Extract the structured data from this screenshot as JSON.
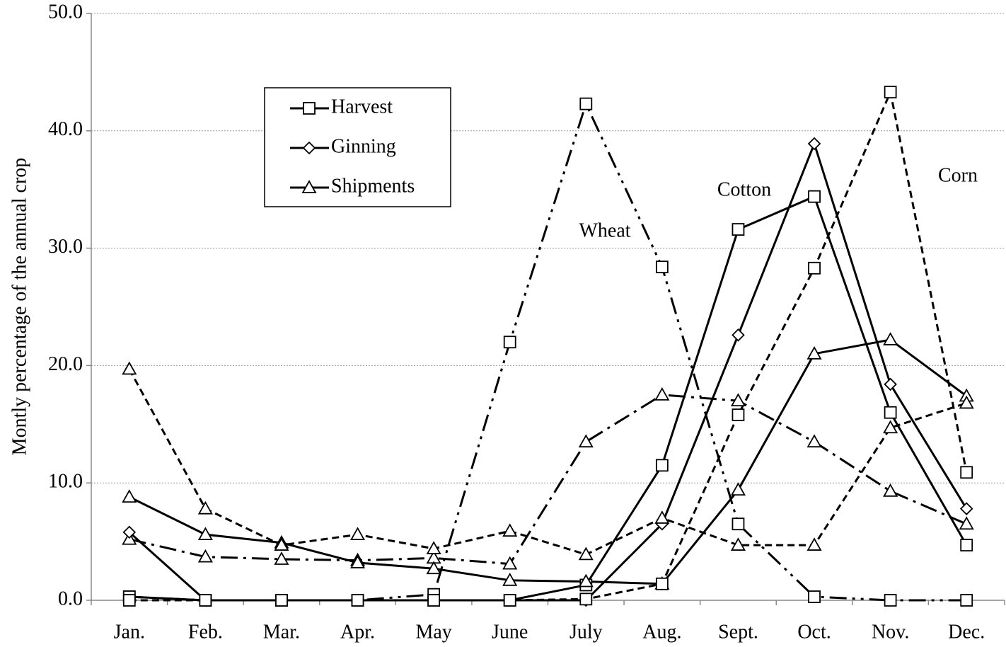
{
  "chart_data": {
    "type": "line",
    "y_label": "Montly percentage of the annual crop",
    "categories": [
      "Jan.",
      "Feb.",
      "Mar.",
      "Apr.",
      "May",
      "June",
      "July",
      "Aug.",
      "Sept.",
      "Oct.",
      "Nov.",
      "Dec."
    ],
    "ylim": [
      0,
      50
    ],
    "yticks": [
      {
        "value": 0,
        "label": "0.0"
      },
      {
        "value": 10,
        "label": "10.0"
      },
      {
        "value": 20,
        "label": "20.0"
      },
      {
        "value": 30,
        "label": "30.0"
      },
      {
        "value": 40,
        "label": "40.0"
      },
      {
        "value": 50,
        "label": "50.0"
      }
    ],
    "grid": true,
    "color": "#000000",
    "legend": [
      {
        "name": "Harvest",
        "marker": "square"
      },
      {
        "name": "Ginning",
        "marker": "diamond"
      },
      {
        "name": "Shipments",
        "marker": "triangle"
      }
    ],
    "crops": [
      {
        "label": "Wheat",
        "series": [
          {
            "marker": "square",
            "dash": "24 8 4 8 4 8",
            "values": [
              0.3,
              0,
              0,
              0,
              0.5,
              22.0,
              42.3,
              28.4,
              6.5,
              0.3,
              0,
              0
            ]
          },
          {
            "marker": "triangle",
            "dash": "24 8 4 8",
            "values": [
              5.2,
              3.7,
              3.5,
              3.4,
              3.6,
              3.1,
              13.5,
              17.5,
              17.0,
              13.5,
              9.3,
              6.5
            ]
          }
        ]
      },
      {
        "label": "Cotton",
        "series": [
          {
            "marker": "square",
            "dash": "none",
            "values": [
              0.3,
              0,
              0,
              0,
              0,
              0,
              1.3,
              11.5,
              31.6,
              34.4,
              16.0,
              4.7
            ]
          },
          {
            "marker": "diamond",
            "dash": "none",
            "values": [
              5.8,
              0,
              0,
              0,
              0,
              0,
              0,
              6.5,
              22.6,
              38.9,
              18.4,
              7.8
            ]
          },
          {
            "marker": "triangle",
            "dash": "none",
            "values": [
              8.8,
              5.6,
              4.9,
              3.2,
              2.7,
              1.7,
              1.6,
              1.4,
              9.4,
              21.0,
              22.2,
              17.4
            ]
          }
        ]
      },
      {
        "label": "Corn",
        "series": [
          {
            "marker": "square",
            "dash": "10 6",
            "values": [
              0,
              0,
              0,
              0,
              0,
              0,
              0.1,
              1.4,
              15.8,
              28.3,
              43.3,
              10.9
            ]
          },
          {
            "marker": "triangle",
            "dash": "10 6",
            "values": [
              19.7,
              7.8,
              4.7,
              5.6,
              4.4,
              5.9,
              3.9,
              7.0,
              4.7,
              4.7,
              14.7,
              16.8
            ]
          }
        ]
      }
    ]
  }
}
